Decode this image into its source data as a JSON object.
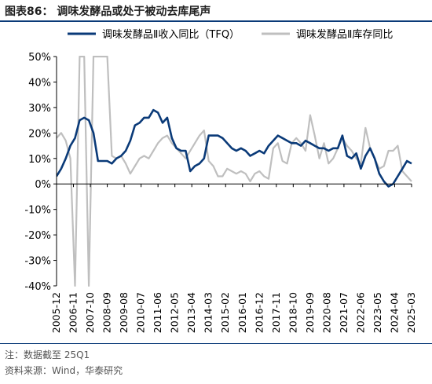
{
  "figure": {
    "title": "图表86： 调味发酵品或处于被动去库尾声",
    "note": "注：数据截至 25Q1",
    "source": "资料来源：Wind，华泰研究"
  },
  "colors": {
    "series1": "#0a3a78",
    "series2": "#bfbfbf",
    "axis": "#000000",
    "rule": "#0a3a78"
  },
  "chart_data": {
    "type": "line",
    "title": "",
    "xlabel": "",
    "ylabel": "",
    "ylim": [
      -40,
      50
    ],
    "yticks": [
      -40,
      -30,
      -20,
      -10,
      0,
      10,
      20,
      30,
      40,
      50
    ],
    "ytick_labels": [
      "-40%",
      "-30%",
      "-20%",
      "-10%",
      "0%",
      "10%",
      "20%",
      "30%",
      "40%",
      "50%"
    ],
    "x_start": "2005-12",
    "x_end": "2025-03",
    "xtick_labels": [
      "2005-12",
      "2006-11",
      "2007-10",
      "2008-09",
      "2009-08",
      "2010-07",
      "2011-06",
      "2012-05",
      "2013-04",
      "2014-03",
      "2015-02",
      "2016-01",
      "2016-12",
      "2017-11",
      "2018-10",
      "2019-09",
      "2020-08",
      "2021-07",
      "2022-06",
      "2023-05",
      "2024-04",
      "2025-03"
    ],
    "grid": false,
    "legend": "top",
    "series": [
      {
        "name": "调味发酵品Ⅱ收入同比（TFQ）",
        "color": "#0a3a78",
        "points": [
          [
            "2005-12",
            3
          ],
          [
            "2006-03",
            6
          ],
          [
            "2006-06",
            10
          ],
          [
            "2006-09",
            15
          ],
          [
            "2006-12",
            18
          ],
          [
            "2007-03",
            25
          ],
          [
            "2007-06",
            26
          ],
          [
            "2007-09",
            25
          ],
          [
            "2007-12",
            20
          ],
          [
            "2008-03",
            9
          ],
          [
            "2008-06",
            9
          ],
          [
            "2008-09",
            9
          ],
          [
            "2008-12",
            8
          ],
          [
            "2009-03",
            10
          ],
          [
            "2009-06",
            11
          ],
          [
            "2009-09",
            13
          ],
          [
            "2009-12",
            17
          ],
          [
            "2010-03",
            23
          ],
          [
            "2010-06",
            24
          ],
          [
            "2010-09",
            26
          ],
          [
            "2010-12",
            26
          ],
          [
            "2011-03",
            29
          ],
          [
            "2011-06",
            28
          ],
          [
            "2011-09",
            24
          ],
          [
            "2011-12",
            26
          ],
          [
            "2012-03",
            18
          ],
          [
            "2012-06",
            14
          ],
          [
            "2012-09",
            13
          ],
          [
            "2012-12",
            13
          ],
          [
            "2013-03",
            5
          ],
          [
            "2013-06",
            7
          ],
          [
            "2013-09",
            8
          ],
          [
            "2013-12",
            10
          ],
          [
            "2014-03",
            19
          ],
          [
            "2014-06",
            19
          ],
          [
            "2014-09",
            19
          ],
          [
            "2014-12",
            18
          ],
          [
            "2015-03",
            16
          ],
          [
            "2015-06",
            14
          ],
          [
            "2015-09",
            13
          ],
          [
            "2015-12",
            14
          ],
          [
            "2016-03",
            13
          ],
          [
            "2016-06",
            11
          ],
          [
            "2016-09",
            12
          ],
          [
            "2016-12",
            13
          ],
          [
            "2017-03",
            12
          ],
          [
            "2017-06",
            15
          ],
          [
            "2017-09",
            17
          ],
          [
            "2017-12",
            19
          ],
          [
            "2018-03",
            18
          ],
          [
            "2018-06",
            17
          ],
          [
            "2018-09",
            16
          ],
          [
            "2018-12",
            16
          ],
          [
            "2019-03",
            15
          ],
          [
            "2019-06",
            17
          ],
          [
            "2019-09",
            16
          ],
          [
            "2019-12",
            15
          ],
          [
            "2020-03",
            14
          ],
          [
            "2020-06",
            14
          ],
          [
            "2020-09",
            13
          ],
          [
            "2020-12",
            14
          ],
          [
            "2021-03",
            14
          ],
          [
            "2021-06",
            19
          ],
          [
            "2021-09",
            11
          ],
          [
            "2021-12",
            10
          ],
          [
            "2022-03",
            12
          ],
          [
            "2022-06",
            6
          ],
          [
            "2022-09",
            11
          ],
          [
            "2022-12",
            14
          ],
          [
            "2023-03",
            10
          ],
          [
            "2023-06",
            4
          ],
          [
            "2023-09",
            1
          ],
          [
            "2023-12",
            -1
          ],
          [
            "2024-03",
            0
          ],
          [
            "2024-06",
            3
          ],
          [
            "2024-09",
            6
          ],
          [
            "2024-12",
            9
          ],
          [
            "2025-03",
            8
          ]
        ]
      },
      {
        "name": "调味发酵品Ⅱ库存同比",
        "color": "#bfbfbf",
        "points": [
          [
            "2005-12",
            18
          ],
          [
            "2006-03",
            20
          ],
          [
            "2006-06",
            17
          ],
          [
            "2006-09",
            10
          ],
          [
            "2006-12",
            -40
          ],
          [
            "2007-03",
            50
          ],
          [
            "2007-06",
            50
          ],
          [
            "2007-09",
            -40
          ],
          [
            "2007-12",
            50
          ],
          [
            "2008-03",
            50
          ],
          [
            "2008-06",
            50
          ],
          [
            "2008-09",
            50
          ],
          [
            "2008-12",
            11
          ],
          [
            "2009-03",
            10
          ],
          [
            "2009-06",
            11
          ],
          [
            "2009-09",
            8
          ],
          [
            "2009-12",
            4
          ],
          [
            "2010-03",
            7
          ],
          [
            "2010-06",
            10
          ],
          [
            "2010-09",
            11
          ],
          [
            "2010-12",
            10
          ],
          [
            "2011-03",
            13
          ],
          [
            "2011-06",
            16
          ],
          [
            "2011-09",
            18
          ],
          [
            "2011-12",
            19
          ],
          [
            "2012-03",
            16
          ],
          [
            "2012-06",
            14
          ],
          [
            "2012-09",
            12
          ],
          [
            "2012-12",
            10
          ],
          [
            "2013-03",
            13
          ],
          [
            "2013-06",
            16
          ],
          [
            "2013-09",
            19
          ],
          [
            "2013-12",
            21
          ],
          [
            "2014-03",
            9
          ],
          [
            "2014-06",
            7
          ],
          [
            "2014-09",
            3
          ],
          [
            "2014-12",
            3
          ],
          [
            "2015-03",
            6
          ],
          [
            "2015-06",
            5
          ],
          [
            "2015-09",
            4
          ],
          [
            "2015-12",
            5
          ],
          [
            "2016-03",
            4
          ],
          [
            "2016-06",
            1
          ],
          [
            "2016-09",
            4
          ],
          [
            "2016-12",
            5
          ],
          [
            "2017-03",
            3
          ],
          [
            "2017-06",
            2
          ],
          [
            "2017-09",
            14
          ],
          [
            "2017-12",
            16
          ],
          [
            "2018-03",
            9
          ],
          [
            "2018-06",
            8
          ],
          [
            "2018-09",
            16
          ],
          [
            "2018-12",
            18
          ],
          [
            "2019-03",
            16
          ],
          [
            "2019-06",
            13
          ],
          [
            "2019-09",
            27
          ],
          [
            "2019-12",
            19
          ],
          [
            "2020-03",
            10
          ],
          [
            "2020-06",
            16
          ],
          [
            "2020-09",
            8
          ],
          [
            "2020-12",
            10
          ],
          [
            "2021-03",
            14
          ],
          [
            "2021-06",
            18
          ],
          [
            "2021-09",
            15
          ],
          [
            "2021-12",
            13
          ],
          [
            "2022-03",
            10
          ],
          [
            "2022-06",
            8
          ],
          [
            "2022-09",
            22
          ],
          [
            "2022-12",
            14
          ],
          [
            "2023-03",
            10
          ],
          [
            "2023-06",
            6
          ],
          [
            "2023-09",
            7
          ],
          [
            "2023-12",
            13
          ],
          [
            "2024-03",
            13
          ],
          [
            "2024-06",
            15
          ],
          [
            "2024-09",
            5
          ],
          [
            "2024-12",
            3
          ],
          [
            "2025-03",
            1
          ]
        ]
      }
    ]
  }
}
